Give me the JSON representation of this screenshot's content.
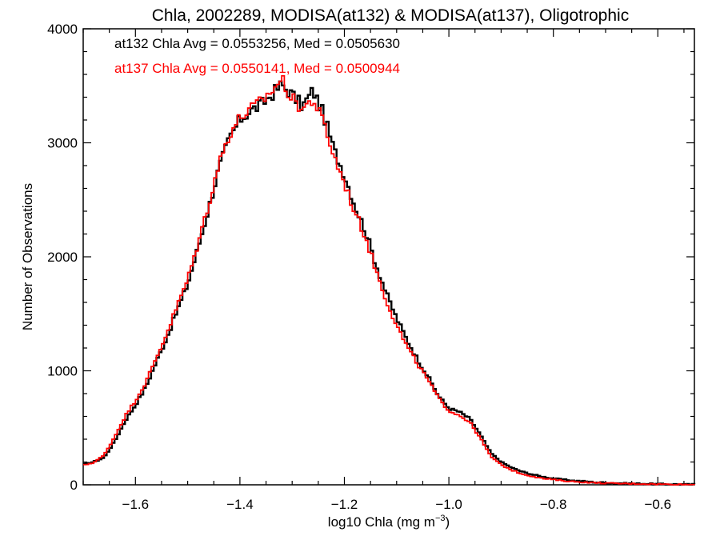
{
  "chart_data": {
    "type": "line",
    "title": "Chla, 2002289, MODISA(at132) & MODISA(at137), Oligotrophic",
    "xlabel_main": "log10 Chla (mg m",
    "xlabel_sup": "−3",
    "xlabel_close": ")",
    "ylabel": "Number of Observations",
    "xlim": [
      -1.7,
      -0.53
    ],
    "ylim": [
      0,
      4000
    ],
    "x_ticks": [
      -1.6,
      -1.4,
      -1.2,
      -1.0,
      -0.8,
      -0.6
    ],
    "x_tick_labels": [
      "−1.6",
      "−1.4",
      "−1.2",
      "−1.0",
      "−0.8",
      "−0.6"
    ],
    "y_ticks": [
      0,
      1000,
      2000,
      3000,
      4000
    ],
    "y_tick_labels": [
      "0",
      "1000",
      "2000",
      "3000",
      "4000"
    ],
    "grid": false,
    "legend_placement": "top-left",
    "series": [
      {
        "name": "at132 Chla Avg = 0.0553256, Med = 0.0505630",
        "color": "#000000",
        "points": [
          [
            -1.7,
            180
          ],
          [
            -1.68,
            200
          ],
          [
            -1.66,
            240
          ],
          [
            -1.64,
            380
          ],
          [
            -1.62,
            560
          ],
          [
            -1.6,
            700
          ],
          [
            -1.58,
            860
          ],
          [
            -1.56,
            1080
          ],
          [
            -1.54,
            1290
          ],
          [
            -1.52,
            1530
          ],
          [
            -1.5,
            1760
          ],
          [
            -1.48,
            2080
          ],
          [
            -1.46,
            2420
          ],
          [
            -1.44,
            2780
          ],
          [
            -1.42,
            3040
          ],
          [
            -1.4,
            3200
          ],
          [
            -1.38,
            3280
          ],
          [
            -1.36,
            3330
          ],
          [
            -1.34,
            3420
          ],
          [
            -1.32,
            3510
          ],
          [
            -1.3,
            3420
          ],
          [
            -1.28,
            3320
          ],
          [
            -1.26,
            3460
          ],
          [
            -1.24,
            3250
          ],
          [
            -1.22,
            2940
          ],
          [
            -1.2,
            2720
          ],
          [
            -1.18,
            2450
          ],
          [
            -1.16,
            2230
          ],
          [
            -1.14,
            1940
          ],
          [
            -1.12,
            1680
          ],
          [
            -1.1,
            1460
          ],
          [
            -1.08,
            1270
          ],
          [
            -1.06,
            1100
          ],
          [
            -1.04,
            950
          ],
          [
            -1.02,
            780
          ],
          [
            -1.0,
            670
          ],
          [
            -0.98,
            640
          ],
          [
            -0.96,
            580
          ],
          [
            -0.94,
            440
          ],
          [
            -0.92,
            280
          ],
          [
            -0.9,
            200
          ],
          [
            -0.88,
            150
          ],
          [
            -0.86,
            115
          ],
          [
            -0.84,
            90
          ],
          [
            -0.82,
            70
          ],
          [
            -0.8,
            55
          ],
          [
            -0.78,
            45
          ],
          [
            -0.76,
            35
          ],
          [
            -0.74,
            30
          ],
          [
            -0.72,
            22
          ],
          [
            -0.7,
            18
          ],
          [
            -0.66,
            12
          ],
          [
            -0.62,
            8
          ],
          [
            -0.58,
            5
          ],
          [
            -0.54,
            3
          ]
        ]
      },
      {
        "name": "at137 Chla Avg = 0.0550141, Med = 0.0500944",
        "color": "#ff0000",
        "points": [
          [
            -1.7,
            170
          ],
          [
            -1.68,
            195
          ],
          [
            -1.66,
            260
          ],
          [
            -1.64,
            420
          ],
          [
            -1.62,
            600
          ],
          [
            -1.6,
            740
          ],
          [
            -1.58,
            900
          ],
          [
            -1.56,
            1110
          ],
          [
            -1.54,
            1330
          ],
          [
            -1.52,
            1570
          ],
          [
            -1.5,
            1800
          ],
          [
            -1.48,
            2120
          ],
          [
            -1.46,
            2460
          ],
          [
            -1.44,
            2820
          ],
          [
            -1.42,
            3080
          ],
          [
            -1.4,
            3220
          ],
          [
            -1.38,
            3290
          ],
          [
            -1.36,
            3360
          ],
          [
            -1.34,
            3450
          ],
          [
            -1.32,
            3560
          ],
          [
            -1.3,
            3380
          ],
          [
            -1.28,
            3300
          ],
          [
            -1.26,
            3380
          ],
          [
            -1.24,
            3180
          ],
          [
            -1.22,
            2880
          ],
          [
            -1.2,
            2650
          ],
          [
            -1.18,
            2390
          ],
          [
            -1.16,
            2180
          ],
          [
            -1.14,
            1890
          ],
          [
            -1.12,
            1620
          ],
          [
            -1.1,
            1400
          ],
          [
            -1.08,
            1210
          ],
          [
            -1.06,
            1060
          ],
          [
            -1.04,
            920
          ],
          [
            -1.02,
            760
          ],
          [
            -1.0,
            650
          ],
          [
            -0.98,
            610
          ],
          [
            -0.96,
            550
          ],
          [
            -0.94,
            410
          ],
          [
            -0.92,
            250
          ],
          [
            -0.9,
            175
          ],
          [
            -0.88,
            130
          ],
          [
            -0.86,
            95
          ],
          [
            -0.84,
            75
          ],
          [
            -0.82,
            55
          ],
          [
            -0.8,
            45
          ],
          [
            -0.78,
            35
          ],
          [
            -0.76,
            28
          ],
          [
            -0.74,
            22
          ],
          [
            -0.72,
            18
          ],
          [
            -0.7,
            14
          ],
          [
            -0.66,
            10
          ],
          [
            -0.62,
            7
          ],
          [
            -0.58,
            4
          ],
          [
            -0.54,
            2
          ]
        ]
      }
    ]
  }
}
